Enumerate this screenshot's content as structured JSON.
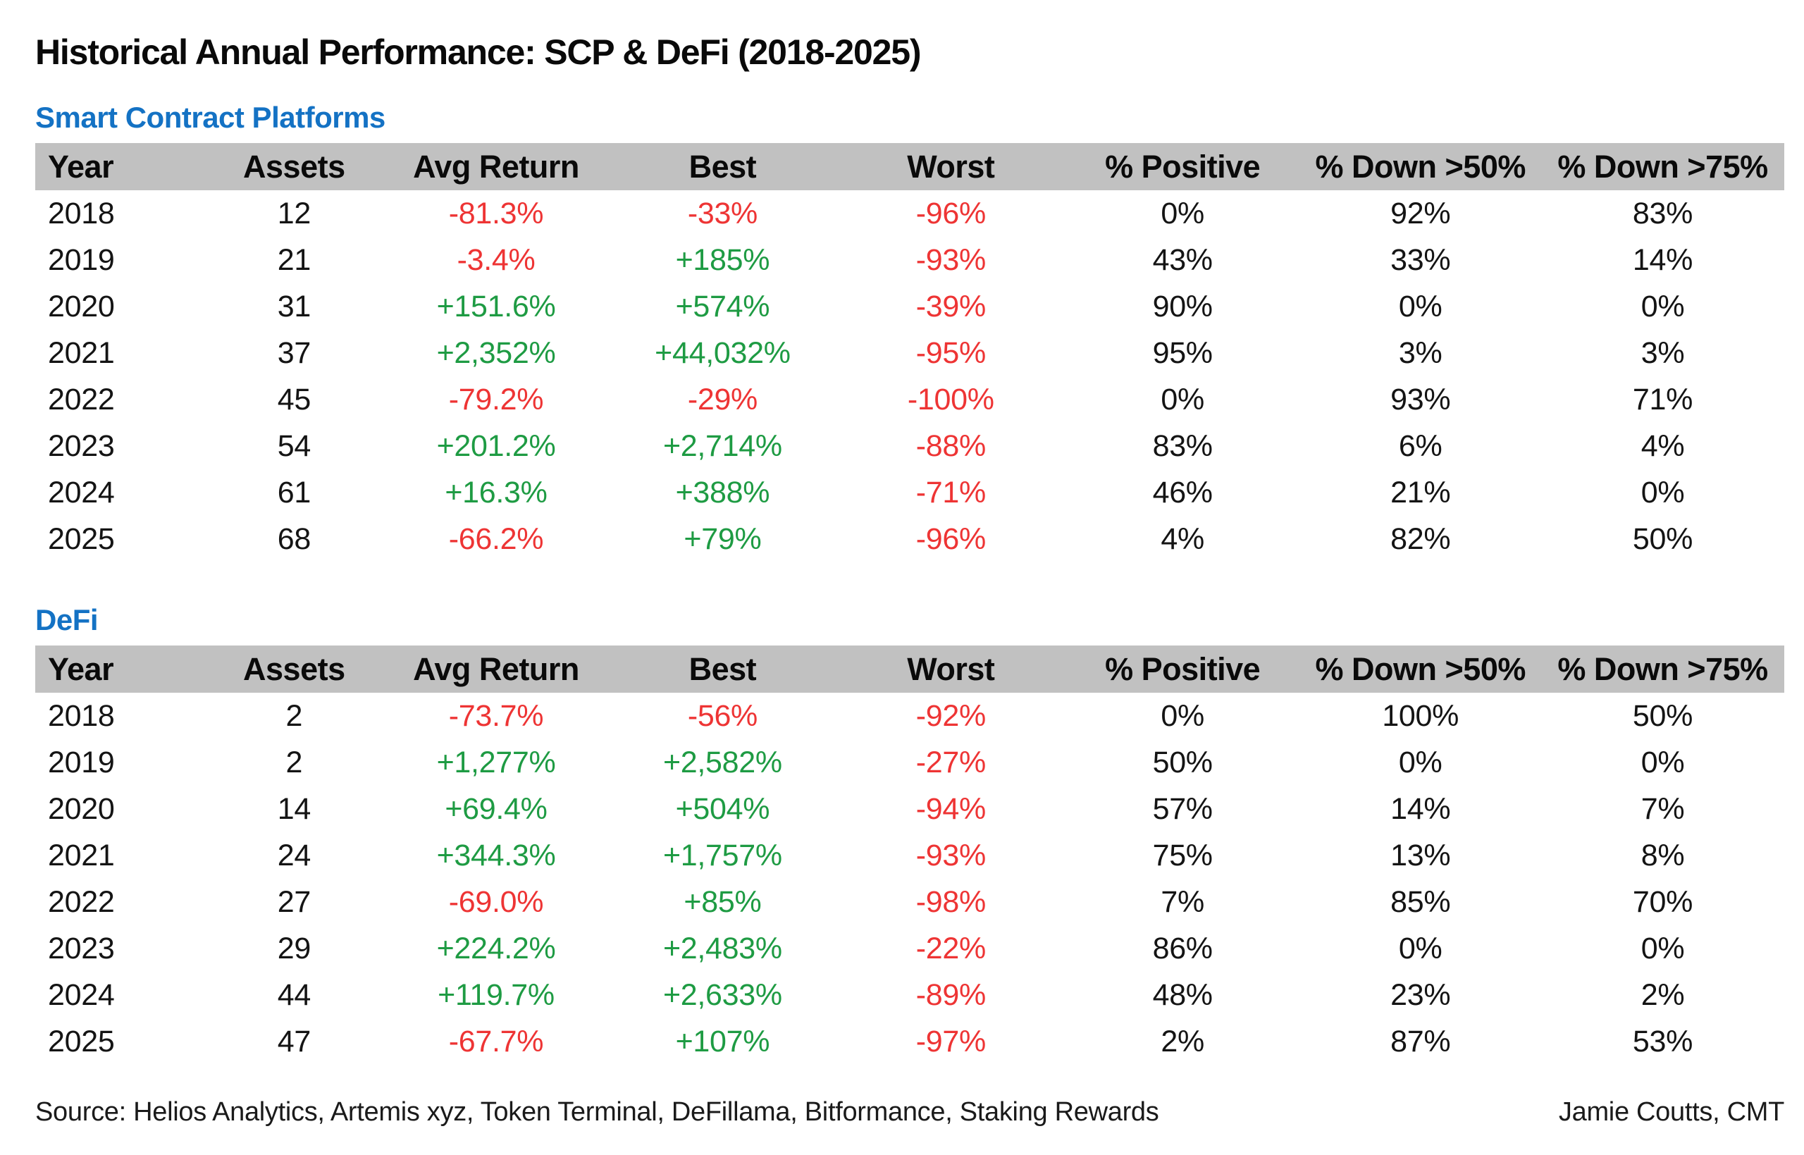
{
  "title": "Historical Annual Performance: SCP & DeFi (2018-2025)",
  "colors": {
    "positive": "#1e9b43",
    "negative": "#ee3434",
    "section_heading": "#1472c4",
    "header_band": "#c1c1c1"
  },
  "chart_data": [
    {
      "type": "table",
      "title": "Smart Contract Platforms",
      "columns": [
        "Year",
        "Assets",
        "Avg Return",
        "Best",
        "Worst",
        "% Positive",
        "% Down >50%",
        "% Down >75%"
      ],
      "rows": [
        [
          "2018",
          "12",
          "-81.3%",
          "-33%",
          "-96%",
          "0%",
          "92%",
          "83%"
        ],
        [
          "2019",
          "21",
          "-3.4%",
          "+185%",
          "-93%",
          "43%",
          "33%",
          "14%"
        ],
        [
          "2020",
          "31",
          "+151.6%",
          "+574%",
          "-39%",
          "90%",
          "0%",
          "0%"
        ],
        [
          "2021",
          "37",
          "+2,352%",
          "+44,032%",
          "-95%",
          "95%",
          "3%",
          "3%"
        ],
        [
          "2022",
          "45",
          "-79.2%",
          "-29%",
          "-100%",
          "0%",
          "93%",
          "71%"
        ],
        [
          "2023",
          "54",
          "+201.2%",
          "+2,714%",
          "-88%",
          "83%",
          "6%",
          "4%"
        ],
        [
          "2024",
          "61",
          "+16.3%",
          "+388%",
          "-71%",
          "46%",
          "21%",
          "0%"
        ],
        [
          "2025",
          "68",
          "-66.2%",
          "+79%",
          "-96%",
          "4%",
          "82%",
          "50%"
        ]
      ]
    },
    {
      "type": "table",
      "title": "DeFi",
      "columns": [
        "Year",
        "Assets",
        "Avg Return",
        "Best",
        "Worst",
        "% Positive",
        "% Down >50%",
        "% Down >75%"
      ],
      "rows": [
        [
          "2018",
          "2",
          "-73.7%",
          "-56%",
          "-92%",
          "0%",
          "100%",
          "50%"
        ],
        [
          "2019",
          "2",
          "+1,277%",
          "+2,582%",
          "-27%",
          "50%",
          "0%",
          "0%"
        ],
        [
          "2020",
          "14",
          "+69.4%",
          "+504%",
          "-94%",
          "57%",
          "14%",
          "7%"
        ],
        [
          "2021",
          "24",
          "+344.3%",
          "+1,757%",
          "-93%",
          "75%",
          "13%",
          "8%"
        ],
        [
          "2022",
          "27",
          "-69.0%",
          "+85%",
          "-98%",
          "7%",
          "85%",
          "70%"
        ],
        [
          "2023",
          "29",
          "+224.2%",
          "+2,483%",
          "-22%",
          "86%",
          "0%",
          "0%"
        ],
        [
          "2024",
          "44",
          "+119.7%",
          "+2,633%",
          "-89%",
          "48%",
          "23%",
          "2%"
        ],
        [
          "2025",
          "47",
          "-67.7%",
          "+107%",
          "-97%",
          "2%",
          "87%",
          "53%"
        ]
      ]
    }
  ],
  "footer": {
    "source": "Source: Helios Analytics, Artemis xyz, Token Terminal, DeFillama, Bitformance, Staking Rewards",
    "credit": "Jamie Coutts, CMT"
  }
}
